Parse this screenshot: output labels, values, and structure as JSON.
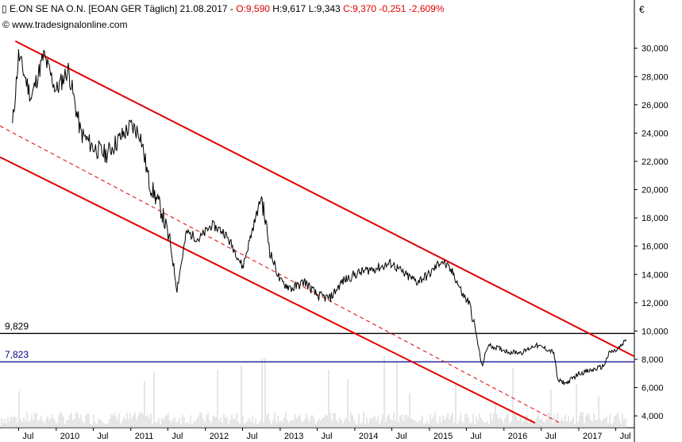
{
  "header": {
    "symbol_icon": "candlestick-icon",
    "name": "E.ON SE NA O.N.",
    "code": "[EOAN GER",
    "interval": "Täglich]",
    "date": "21.08.2017",
    "open": "O:9,590",
    "high": "H:9,617",
    "low": "L:9,343",
    "close": "C:9,370",
    "change": "-0,251",
    "change_pct": "-2,609%"
  },
  "copyright": "© www.tradesignalonline.com",
  "currency": "€",
  "colors": {
    "price": "#000000",
    "channel": "#e00000",
    "level_black": "#000000",
    "level_blue": "#00008b",
    "volume": "#cccccc",
    "negative": "#e00000"
  },
  "chart_data": {
    "type": "line",
    "x_tick_labels": [
      "Jul",
      "2010",
      "Jul",
      "2011",
      "Jul",
      "2012",
      "Jul",
      "2013",
      "Jul",
      "2014",
      "Jul",
      "2015",
      "Jul",
      "2016",
      "Jul",
      "2017",
      "Jul"
    ],
    "y_ticks": [
      "4,000",
      "6,000",
      "8,000",
      "10,000",
      "12,000",
      "14,000",
      "16,000",
      "18,000",
      "20,000",
      "22,000",
      "24,000",
      "26,000",
      "28,000",
      "30,000"
    ],
    "ylim": [
      3500,
      31500
    ],
    "series": [
      {
        "values_by_date": [
          [
            "2009-06-01",
            24.5
          ],
          [
            "2009-07-01",
            29.5
          ],
          [
            "2009-09-01",
            26.5
          ],
          [
            "2009-11-01",
            29.5
          ],
          [
            "2010-01-01",
            27.0
          ],
          [
            "2010-03-01",
            28.5
          ],
          [
            "2010-05-01",
            24.0
          ],
          [
            "2010-07-01",
            23.0
          ],
          [
            "2010-09-01",
            22.5
          ],
          [
            "2010-11-01",
            23.5
          ],
          [
            "2011-01-01",
            24.5
          ],
          [
            "2011-02-15",
            24.0
          ],
          [
            "2011-04-01",
            20.5
          ],
          [
            "2011-06-01",
            18.5
          ],
          [
            "2011-07-15",
            16.0
          ],
          [
            "2011-08-15",
            13.0
          ],
          [
            "2011-10-01",
            17.0
          ],
          [
            "2011-12-01",
            16.5
          ],
          [
            "2012-02-01",
            17.5
          ],
          [
            "2012-04-01",
            17.0
          ],
          [
            "2012-06-01",
            15.5
          ],
          [
            "2012-07-01",
            14.5
          ],
          [
            "2012-08-15",
            17.0
          ],
          [
            "2012-10-01",
            19.5
          ],
          [
            "2012-11-15",
            15.5
          ],
          [
            "2013-01-01",
            13.5
          ],
          [
            "2013-03-01",
            13.0
          ],
          [
            "2013-05-01",
            13.5
          ],
          [
            "2013-07-01",
            12.5
          ],
          [
            "2013-09-01",
            12.3
          ],
          [
            "2013-11-01",
            13.5
          ],
          [
            "2014-01-01",
            14.0
          ],
          [
            "2014-03-01",
            14.3
          ],
          [
            "2014-05-01",
            14.5
          ],
          [
            "2014-07-01",
            14.8
          ],
          [
            "2014-09-01",
            14.0
          ],
          [
            "2014-11-01",
            13.5
          ],
          [
            "2015-01-01",
            14.0
          ],
          [
            "2015-03-01",
            15.0
          ],
          [
            "2015-05-01",
            14.0
          ],
          [
            "2015-06-15",
            12.5
          ],
          [
            "2015-07-15",
            12.0
          ],
          [
            "2015-08-15",
            10.0
          ],
          [
            "2015-09-15",
            7.5
          ],
          [
            "2015-10-15",
            9.0
          ],
          [
            "2015-12-01",
            8.8
          ],
          [
            "2016-02-01",
            8.5
          ],
          [
            "2016-04-01",
            8.5
          ],
          [
            "2016-06-01",
            9.0
          ],
          [
            "2016-07-15",
            8.8
          ],
          [
            "2016-09-01",
            8.5
          ],
          [
            "2016-09-20",
            6.5
          ],
          [
            "2016-11-01",
            6.3
          ],
          [
            "2017-01-01",
            7.0
          ],
          [
            "2017-03-01",
            7.2
          ],
          [
            "2017-05-01",
            7.5
          ],
          [
            "2017-06-01",
            8.5
          ],
          [
            "2017-07-01",
            8.6
          ],
          [
            "2017-08-01",
            9.0
          ],
          [
            "2017-08-21",
            9.4
          ]
        ]
      }
    ],
    "volume_description": "Grey volume histogram bars along the bottom of the price pane (no volume scale is printed).",
    "channel_lines": [
      {
        "style": "solid",
        "color": "#e00000",
        "from": [
          "2009-06-15",
          30.5
        ],
        "to": [
          "2017-09-30",
          8.2
        ]
      },
      {
        "style": "solid",
        "color": "#e00000",
        "from": [
          "2009-04-01",
          22.3
        ],
        "to": [
          "2016-06-01",
          3.5
        ]
      },
      {
        "style": "dashed",
        "color": "#e00000",
        "from": [
          "2009-04-01",
          24.5
        ],
        "to": [
          "2016-09-30",
          3.5
        ]
      }
    ],
    "levels": [
      {
        "value": 9.829,
        "label": "9,829",
        "color": "#000000"
      },
      {
        "value": 7.823,
        "label": "7,823",
        "color": "#00008b"
      }
    ],
    "x_axis_start": "2009-04-01",
    "x_axis_end": "2017-09-30",
    "grid": false,
    "legend": "none"
  }
}
